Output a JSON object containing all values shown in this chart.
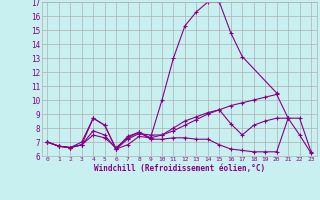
{
  "x": [
    0,
    1,
    2,
    3,
    4,
    5,
    6,
    7,
    8,
    9,
    10,
    11,
    12,
    13,
    14,
    15,
    16,
    17,
    18,
    19,
    20,
    21,
    22,
    23
  ],
  "line1": [
    7.0,
    6.7,
    6.6,
    6.8,
    8.7,
    8.2,
    6.5,
    7.4,
    7.7,
    7.3,
    10.0,
    13.0,
    15.3,
    16.3,
    17.0,
    17.0,
    14.8,
    13.1,
    null,
    null,
    10.5,
    null,
    null,
    null
  ],
  "line2": [
    7.0,
    6.7,
    6.6,
    6.8,
    7.8,
    7.5,
    6.5,
    7.2,
    7.6,
    7.5,
    7.5,
    7.8,
    8.2,
    8.6,
    9.0,
    9.3,
    9.6,
    9.8,
    10.0,
    10.2,
    10.4,
    8.7,
    8.7,
    6.3
  ],
  "line3": [
    7.0,
    6.7,
    6.6,
    6.8,
    7.5,
    7.3,
    6.6,
    7.3,
    7.7,
    7.2,
    7.2,
    7.3,
    7.3,
    7.2,
    7.2,
    6.8,
    6.5,
    6.4,
    6.3,
    6.3,
    6.3,
    8.7,
    7.5,
    6.2
  ],
  "line4": [
    7.0,
    6.7,
    6.6,
    7.0,
    8.7,
    8.2,
    6.5,
    6.8,
    7.4,
    7.3,
    7.5,
    8.0,
    8.5,
    8.8,
    9.1,
    9.3,
    8.3,
    7.5,
    8.2,
    8.5,
    8.7,
    8.7,
    null,
    null
  ],
  "xlim": [
    -0.5,
    23.5
  ],
  "ylim": [
    6,
    17
  ],
  "yticks": [
    6,
    7,
    8,
    9,
    10,
    11,
    12,
    13,
    14,
    15,
    16,
    17
  ],
  "xticks": [
    0,
    1,
    2,
    3,
    4,
    5,
    6,
    7,
    8,
    9,
    10,
    11,
    12,
    13,
    14,
    15,
    16,
    17,
    18,
    19,
    20,
    21,
    22,
    23
  ],
  "xlabel": "Windchill (Refroidissement éolien,°C)",
  "line_color": "#880088",
  "bg_color": "#c8f0f0",
  "grid_color": "#b0b0b0"
}
